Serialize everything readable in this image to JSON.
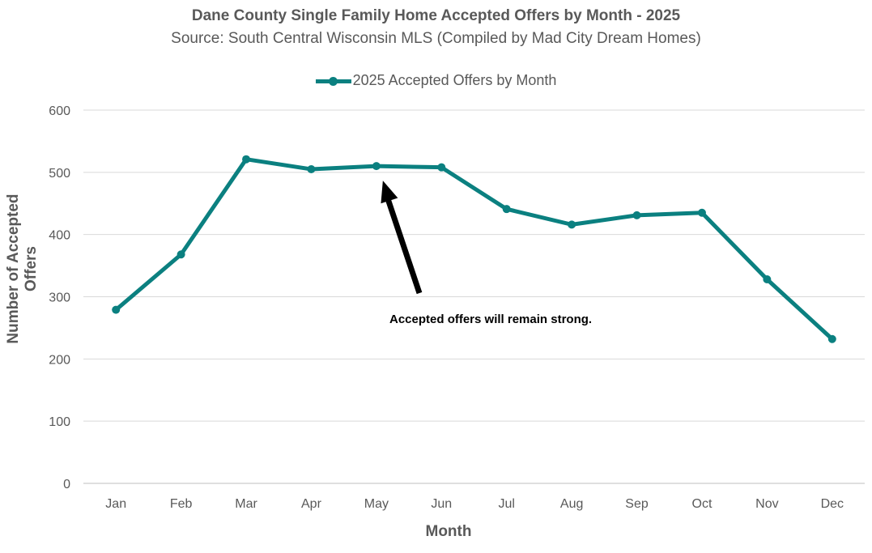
{
  "chart_data": {
    "type": "line",
    "title": "Dane County Single Family Home Accepted Offers by Month - 2025",
    "subtitle": "Source: South Central Wisconsin MLS (Compiled by Mad City Dream Homes)",
    "xlabel": "Month",
    "ylabel": "Number of Accepted Offers",
    "categories": [
      "Jan",
      "Feb",
      "Mar",
      "Apr",
      "May",
      "Jun",
      "Jul",
      "Aug",
      "Sep",
      "Oct",
      "Nov",
      "Dec"
    ],
    "series": [
      {
        "name": "2025 Accepted Offers by Month",
        "color": "#0b8080",
        "values": [
          279,
          368,
          521,
          505,
          510,
          508,
          441,
          416,
          431,
          435,
          328,
          232
        ]
      }
    ],
    "ylim": [
      0,
      600
    ],
    "yticks": [
      0,
      100,
      200,
      300,
      400,
      500,
      600
    ],
    "grid": true,
    "legend_position": "top",
    "annotation": {
      "text": "Accepted offers will remain strong.",
      "points_to": "May"
    }
  }
}
